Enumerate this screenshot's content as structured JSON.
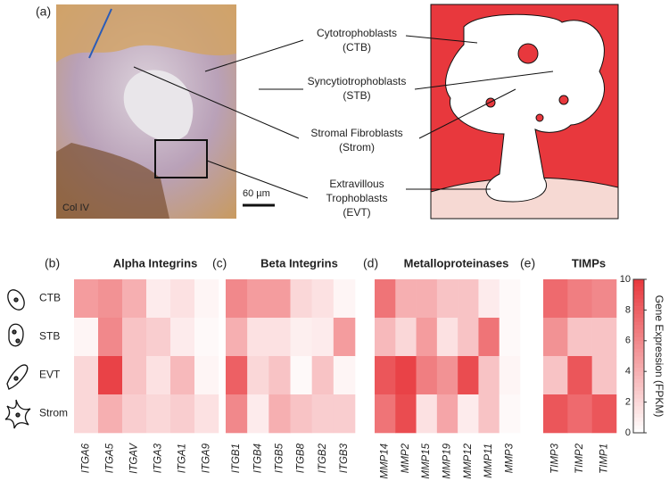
{
  "panel_a": {
    "label": "(a)",
    "stain": "Col IV",
    "scale": "60 µm",
    "annotations": [
      {
        "lines": [
          "Cytotrophoblasts",
          "(CTB)"
        ]
      },
      {
        "lines": [
          "Syncytiotrophoblasts",
          "(STB)"
        ]
      },
      {
        "lines": [
          "Stromal Fibroblasts",
          "(Strom)"
        ]
      },
      {
        "lines": [
          "Extravillous",
          "Trophoblasts",
          "(EVT)"
        ]
      }
    ]
  },
  "rows": [
    "CTB",
    "STB",
    "EVT",
    "Strom"
  ],
  "heatmaps": [
    {
      "label": "(b)",
      "title": "Alpha Integrins",
      "columns": [
        "ITGA6",
        "ITGA5",
        "ITGAV",
        "ITGA3",
        "ITGA1",
        "ITGA9"
      ],
      "values": [
        [
          5,
          5.5,
          4,
          1,
          1.5,
          0.5
        ],
        [
          0.5,
          6,
          3,
          2.5,
          1,
          0.3
        ],
        [
          2,
          9.5,
          3,
          1.5,
          3.5,
          0.5
        ],
        [
          2,
          4,
          2.5,
          2,
          2.5,
          1.5
        ]
      ]
    },
    {
      "label": "(c)",
      "title": "Beta Integrins",
      "columns": [
        "ITGB1",
        "ITGB4",
        "ITGB5",
        "ITGB8",
        "ITGB2",
        "ITGB3"
      ],
      "values": [
        [
          6,
          5,
          5,
          2,
          1.5,
          0.5
        ],
        [
          4,
          1.5,
          1.5,
          0.8,
          1,
          5
        ],
        [
          8,
          2,
          3,
          0.3,
          3,
          0.5
        ],
        [
          6,
          1,
          4,
          3,
          2.5,
          2.5
        ]
      ]
    },
    {
      "label": "(d)",
      "title": "Metalloproteinases",
      "columns": [
        "MMP14",
        "MMP2",
        "MMP15",
        "MMP19",
        "MMP12",
        "MMP11",
        "MMP3"
      ],
      "values": [
        [
          7,
          4,
          4,
          3,
          3,
          1,
          0.3
        ],
        [
          3.5,
          2,
          5,
          1.5,
          3,
          7,
          0.3
        ],
        [
          8.5,
          9.5,
          6.5,
          5.5,
          9,
          3,
          0.5
        ],
        [
          7,
          9,
          1.5,
          4.5,
          1,
          3,
          0.3
        ]
      ]
    },
    {
      "label": "(e)",
      "title": "TIMPs",
      "columns": [
        "TIMP3",
        "TIMP2",
        "TIMP1"
      ],
      "values": [
        [
          7.5,
          6.5,
          6
        ],
        [
          5.5,
          3,
          3
        ],
        [
          3,
          8.5,
          3
        ],
        [
          8.5,
          7.5,
          8.5
        ]
      ]
    }
  ],
  "colorbar": {
    "label": "Gene Expression (FPKM)",
    "lim": [
      0,
      10
    ],
    "ticks": [
      0,
      2,
      4,
      6,
      8,
      10
    ],
    "color": "#e8383d"
  }
}
